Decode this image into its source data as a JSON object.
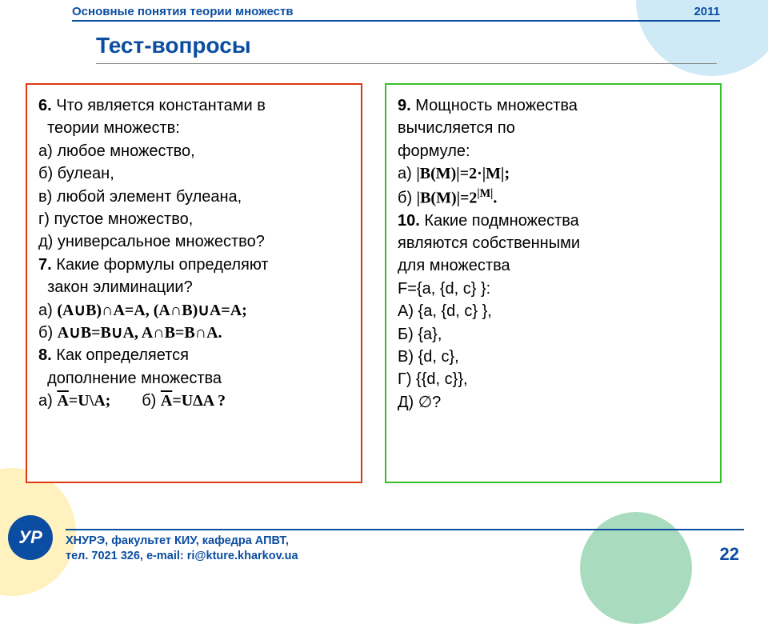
{
  "header": {
    "topic": "Основные понятия теории множеств",
    "year": "2011",
    "title": "Тест-вопросы"
  },
  "left": {
    "q6_num": "6.",
    "q6_text": " Что является константами в",
    "q6_line2": "  теории множеств:",
    "q6_a": "а) любое множество,",
    "q6_b": "б) булеан,",
    "q6_c": "в) любой элемент булеана,",
    "q6_d": "г) пустое множество,",
    "q6_e": "д) универсальное множество?",
    "q7_num": "7.",
    "q7_text": " Какие формулы определяют",
    "q7_line2": "  закон элиминации?",
    "q7_a_label": "а) ",
    "q7_a_formula": "(A∪B)∩A=A, (A∩B)∪A=A;",
    "q7_b_label": "б) ",
    "q7_b_formula": "A∪B=B∪A, A∩B=B∩A.",
    "q8_num": "8.",
    "q8_text": " Как определяется",
    "q8_line2": "  дополнение множества",
    "q8_a_label": "а) ",
    "q8_a_f1": "A",
    "q8_a_f2": "=U\\A;",
    "q8_b_label": "б) ",
    "q8_b_f1": "A",
    "q8_b_f2": "=UΔA ?"
  },
  "right": {
    "q9_num": "9.",
    "q9_text": " Мощность множества",
    "q9_line2": "вычисляется по",
    "q9_line3": "формуле:",
    "q9_a_label": "а) ",
    "q9_a_f": "|B(M)|=2·|M|;",
    "q9_b_label": "б) ",
    "q9_b_f1": "|B(M)|=2",
    "q9_b_exp": "|M|",
    "q9_b_f2": ".",
    "q10_num": "10.",
    "q10_text": " Какие подмножества",
    "q10_line2": "являются собственными",
    "q10_line3": "для множества",
    "q10_line4": "F={a, {d, c} }:",
    "q10_a": "А) {a, {d, c} },",
    "q10_b": "Б) {a},",
    "q10_c": "В) {d, c},",
    "q10_d": "Г) {{d, c}},",
    "q10_e": "Д) ∅?"
  },
  "footer": {
    "line1": "ХНУРЭ, факультет КИУ, кафедра АПВТ,",
    "line2": "тел. 7021 326, e-mail: ri@kture.kharkov.ua",
    "page": "22",
    "logo": "УР"
  },
  "style": {
    "accent": "#0b4da0",
    "left_border": "#dc3913",
    "right_border": "#34c02a",
    "bg_circle_blue": "#cfe9f7",
    "bg_circle_yellow": "#fff2bf",
    "bg_circle_green": "#9ad6b4",
    "body_fontsize": 20,
    "title_fontsize": 28
  }
}
